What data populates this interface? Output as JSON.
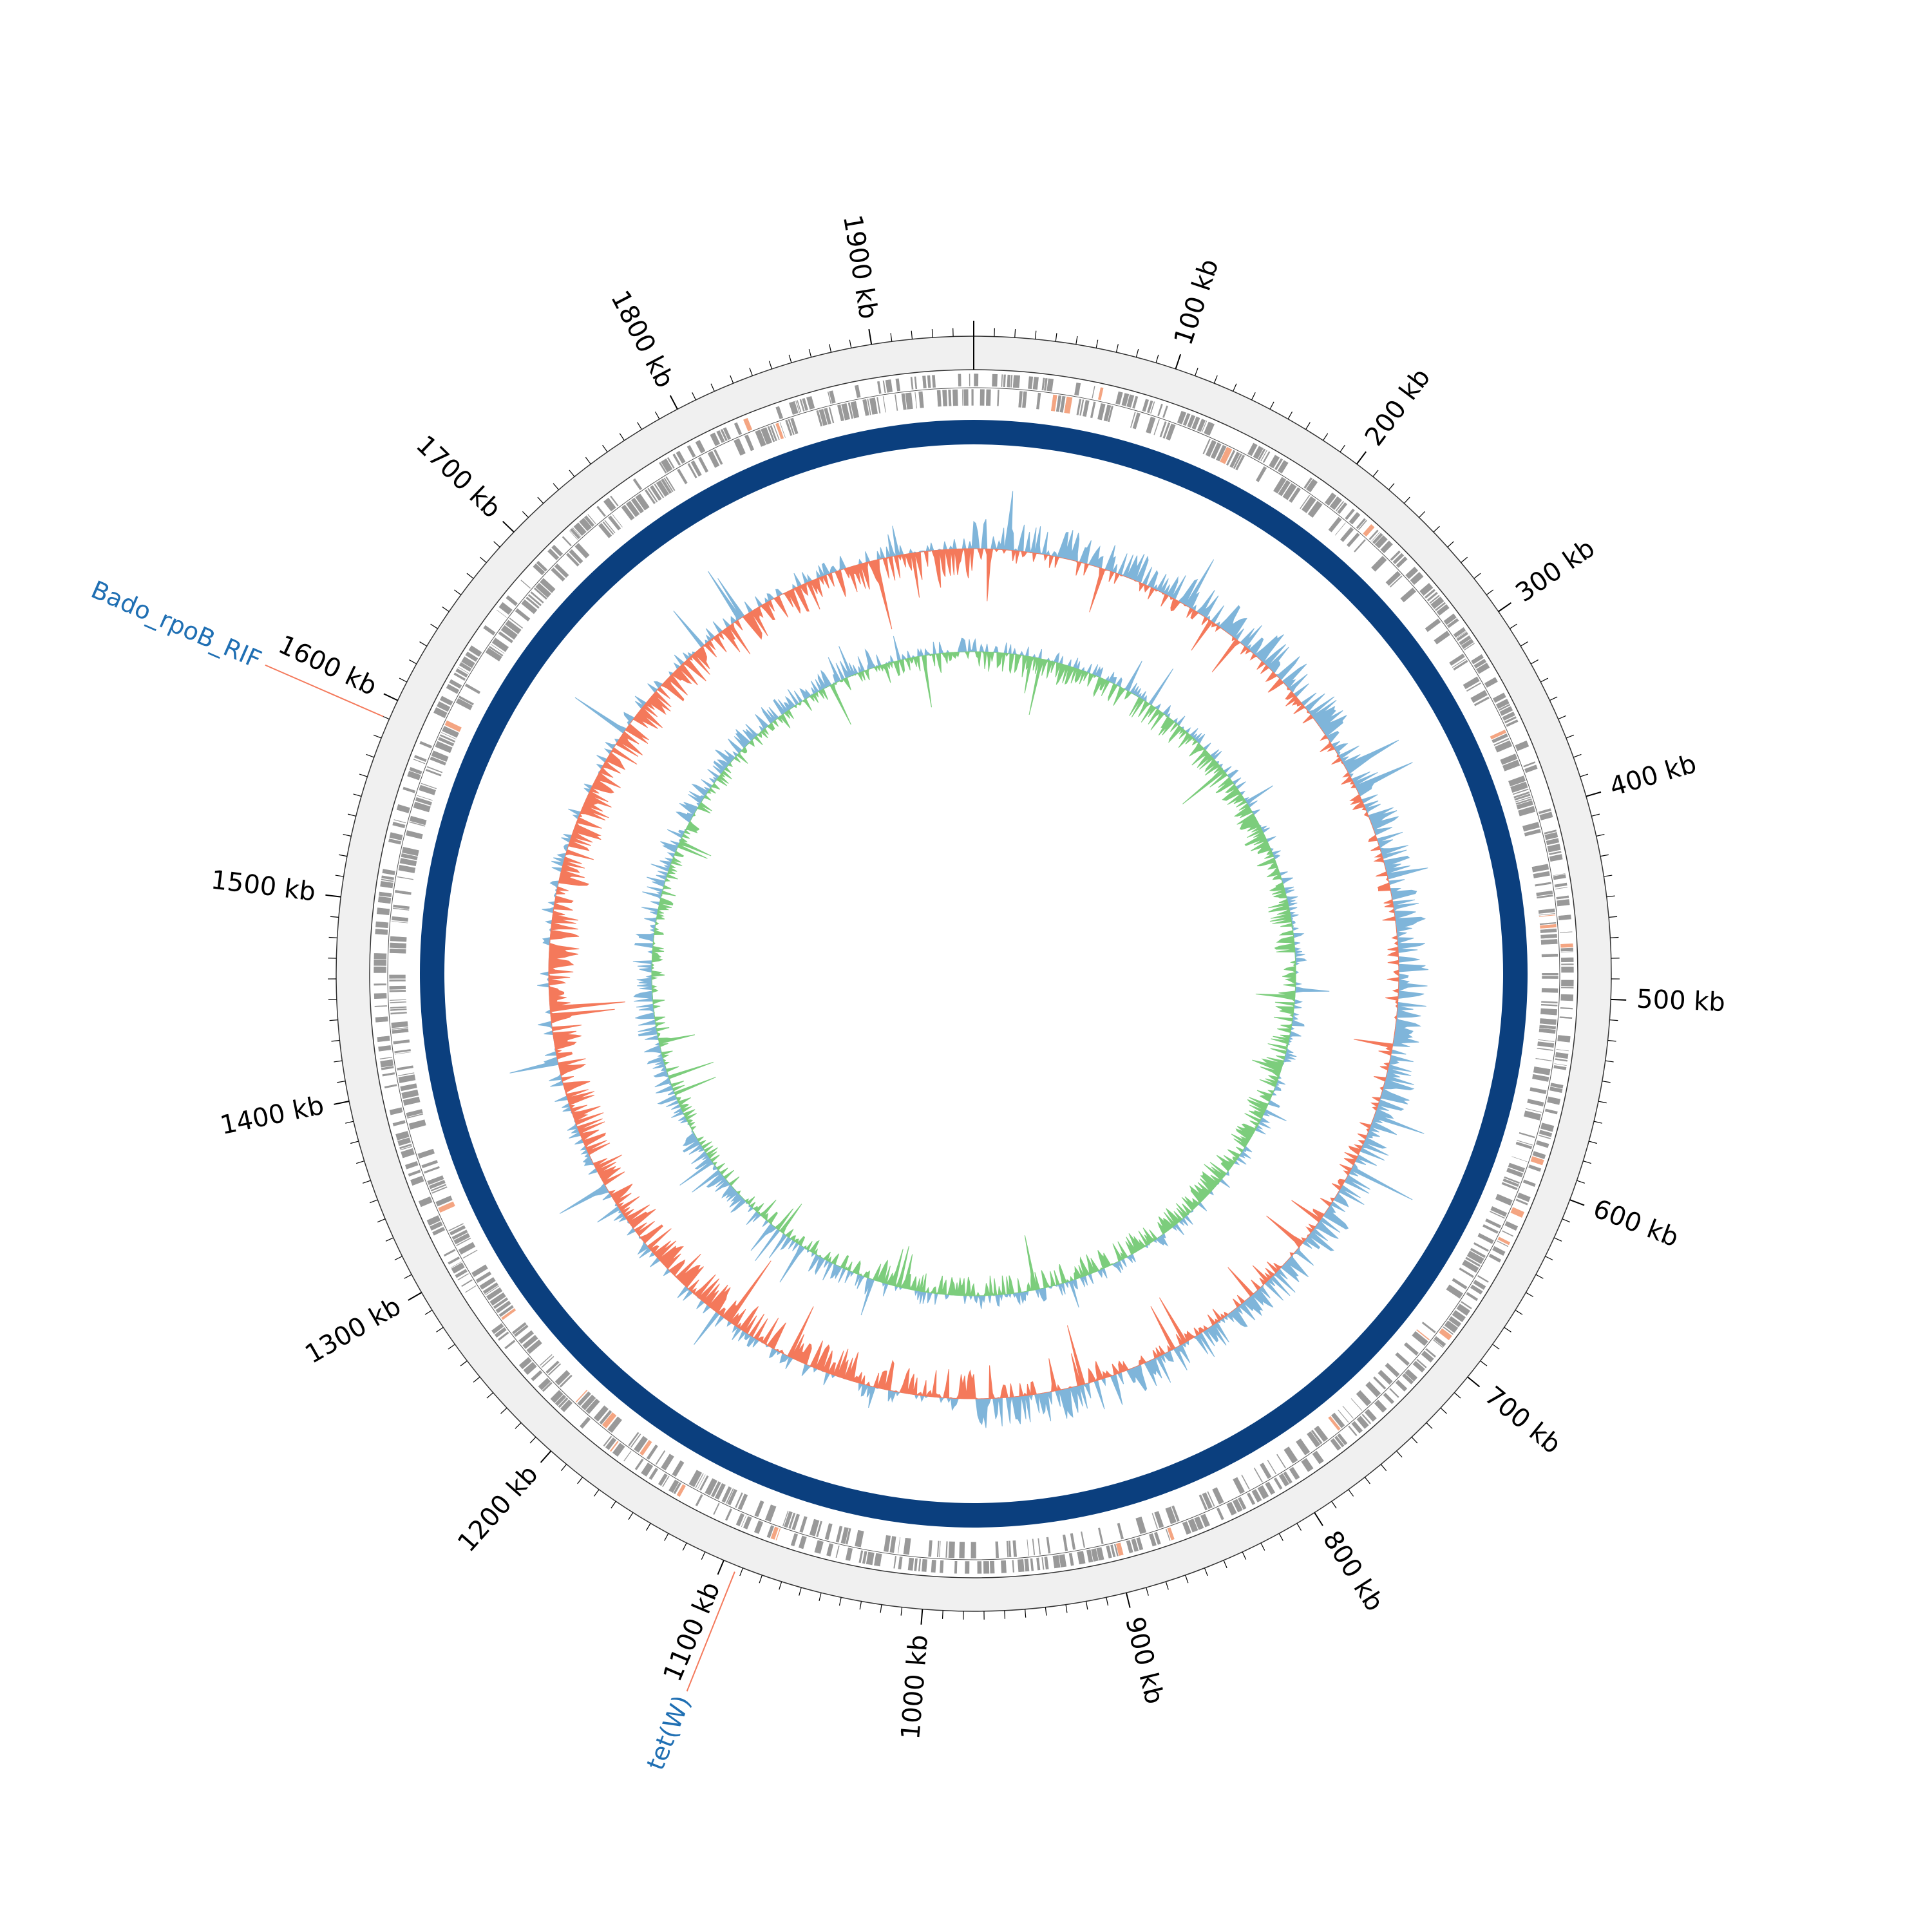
{
  "genome": {
    "length_kb": 1950,
    "tick_labels": [
      "100 kb",
      "200 kb",
      "300 kb",
      "400 kb",
      "500 kb",
      "600 kb",
      "700 kb",
      "800 kb",
      "900 kb",
      "1000 kb",
      "1100 kb",
      "1200 kb",
      "1300 kb",
      "1400 kb",
      "1500 kb",
      "1600 kb",
      "1700 kb",
      "1800 kb",
      "1900 kb"
    ],
    "tick_positions_kb": [
      100,
      200,
      300,
      400,
      500,
      600,
      700,
      800,
      900,
      1000,
      1100,
      1200,
      1300,
      1400,
      1500,
      1600,
      1700,
      1800,
      1900
    ]
  },
  "features": [
    {
      "label": "Bado_rpoB_RIF",
      "position_kb": 1590
    },
    {
      "label": "tet(W)",
      "position_kb": 1093
    }
  ],
  "colors": {
    "ideogram": "#f0f0f0",
    "genes": "#999999",
    "genes_highlight": "#f4a582",
    "contig_ring": "#0b3f7e",
    "gc_content_positive": "#7fb5da",
    "gc_content_negative": "#f4795b",
    "gc_skew_positive": "#7fb5da",
    "gc_skew_negative": "#7ccd7c",
    "feature_label": "#1f6fb3",
    "feature_line": "#f4795b"
  }
}
